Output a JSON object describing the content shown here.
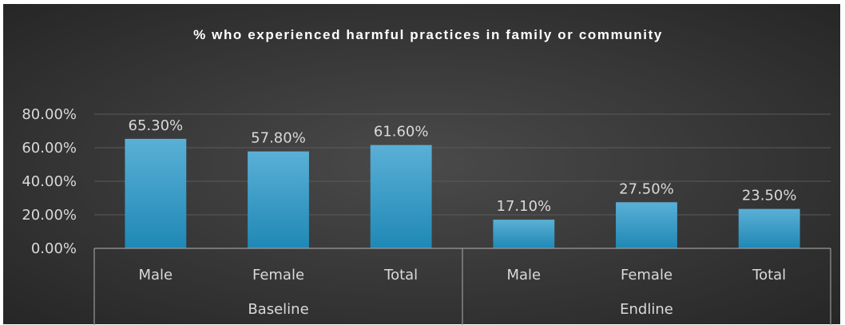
{
  "chart_data": {
    "type": "bar",
    "title": "% who experienced harmful practices in family or community",
    "groups": [
      {
        "name": "Baseline",
        "categories": [
          "Male",
          "Female",
          "Total"
        ],
        "values": [
          65.3,
          57.8,
          61.6
        ],
        "labels": [
          "65.30%",
          "57.80%",
          "61.60%"
        ]
      },
      {
        "name": "Endline",
        "categories": [
          "Male",
          "Female",
          "Total"
        ],
        "values": [
          17.1,
          27.5,
          23.5
        ],
        "labels": [
          "17.10%",
          "27.50%",
          "23.50%"
        ]
      }
    ],
    "yticks": [
      "0.00%",
      "20.00%",
      "40.00%",
      "60.00%",
      "80.00%"
    ],
    "ytick_values": [
      0,
      20,
      40,
      60,
      80
    ],
    "ylim": [
      0,
      80
    ],
    "grid": true,
    "legend": "none",
    "colors": {
      "bar_top": "#5ab0d6",
      "bar_bottom": "#1f88b5",
      "background": "#3a3a3a",
      "text": "#d9d9d9",
      "gridline": "#5a5a5a",
      "axis": "#9a9a9a"
    }
  }
}
